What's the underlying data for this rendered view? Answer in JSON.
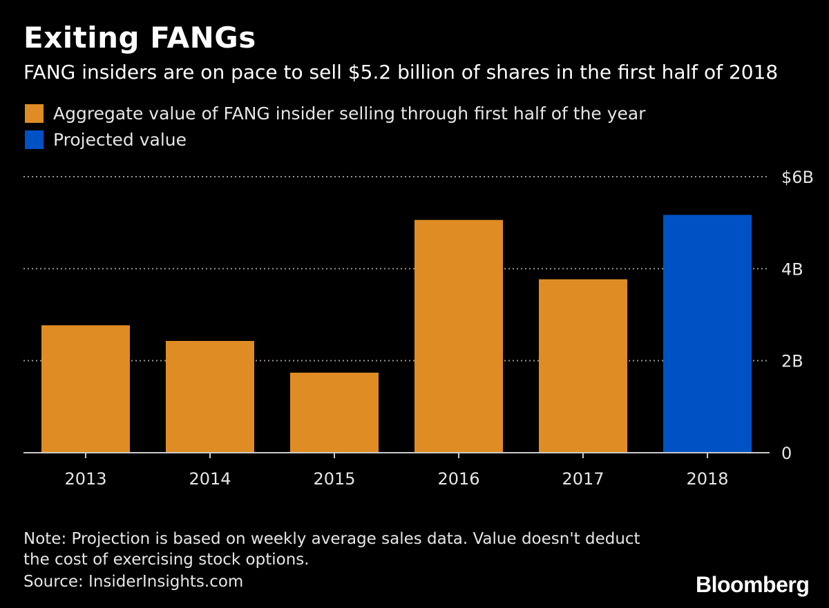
{
  "header": {
    "title": "Exiting FANGs",
    "subtitle": "FANG insiders are on pace to sell $5.2 billion of shares in the first half of 2018"
  },
  "legend": [
    {
      "label": "Aggregate value of FANG insider selling through first half of the year",
      "color": "#E08C24"
    },
    {
      "label": "Projected value",
      "color": "#0052C4"
    }
  ],
  "chart_data": {
    "type": "bar",
    "categories": [
      "2013",
      "2014",
      "2015",
      "2016",
      "2017",
      "2018"
    ],
    "series": [
      {
        "name": "Aggregate value of FANG insider selling through first half of the year",
        "values": [
          2.77,
          2.43,
          1.74,
          5.06,
          3.77,
          null
        ],
        "color": "#E08C24"
      },
      {
        "name": "Projected value",
        "values": [
          null,
          null,
          null,
          null,
          null,
          5.17
        ],
        "color": "#0052C4"
      }
    ],
    "ylim": [
      0,
      6
    ],
    "yticks": [
      {
        "value": 0,
        "label": "0"
      },
      {
        "value": 2,
        "label": "2B"
      },
      {
        "value": 4,
        "label": "4B"
      },
      {
        "value": 6,
        "label": "$6B"
      }
    ],
    "grid": true,
    "legend_position": "top-left",
    "xlabel": "",
    "ylabel": ""
  },
  "footer": {
    "note": "Note: Projection is based on weekly average sales data. Value doesn't deduct the cost of exercising stock options.",
    "source": "Source: InsiderInsights.com",
    "brand": "Bloomberg"
  }
}
